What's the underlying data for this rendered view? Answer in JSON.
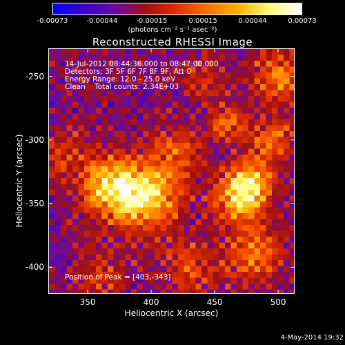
{
  "colorbar": {
    "ticks": [
      "-0.00073",
      "-0.00044",
      "-0.00015",
      "0.00015",
      "0.00044",
      "0.00073"
    ],
    "tick_values": [
      -0.00073,
      -0.00044,
      -0.00015,
      0.00015,
      0.00044,
      0.00073
    ],
    "unit_label": "(photons cm⁻² s⁻¹ asec⁻²)",
    "colors": [
      "#0000ff",
      "#3a00c8",
      "#6a0aa0",
      "#a01010",
      "#e03000",
      "#ff7000",
      "#ffb400",
      "#ffff80",
      "#ffffff"
    ]
  },
  "title": "Reconstructed RHESSI Image",
  "info": {
    "line1": "14-Jul-2012 08:44:36.000 to 08:47:00.000",
    "line2": "Detectors: 3F 5F 6F 7F 8F 9F, Att 0",
    "line3": "Energy Range: 12.0 - 25.0 keV",
    "line4": "Clean    Total counts: 2.34E+03",
    "peak": "Position of Peak = [403,-343]"
  },
  "axes": {
    "xlabel": "Heliocentric X (arcsec)",
    "ylabel": "Heliocentric Y (arcsec)",
    "xticks": [
      "350",
      "400",
      "450",
      "500"
    ],
    "xtick_values": [
      350,
      400,
      450,
      500
    ],
    "yticks": [
      "-250",
      "-300",
      "-350",
      "-400"
    ],
    "ytick_values": [
      -250,
      -300,
      -350,
      -400
    ],
    "xlim": [
      319,
      513
    ],
    "ylim": [
      -421,
      -228
    ]
  },
  "footer": "4-May-2014 19:32",
  "image_sources": [
    {
      "x": 395,
      "y": -345,
      "amp": 1.0,
      "w": 18
    },
    {
      "x": 365,
      "y": -335,
      "amp": 0.85,
      "w": 16
    },
    {
      "x": 470,
      "y": -345,
      "amp": 0.85,
      "w": 14
    },
    {
      "x": 478,
      "y": -330,
      "amp": 0.6,
      "w": 12
    },
    {
      "x": 420,
      "y": -310,
      "amp": 0.45,
      "w": 14
    },
    {
      "x": 460,
      "y": -285,
      "amp": 0.55,
      "w": 10
    },
    {
      "x": 500,
      "y": -250,
      "amp": 0.6,
      "w": 14
    },
    {
      "x": 495,
      "y": -300,
      "amp": 0.55,
      "w": 12
    },
    {
      "x": 480,
      "y": -390,
      "amp": 0.55,
      "w": 16
    },
    {
      "x": 430,
      "y": -400,
      "amp": 0.45,
      "w": 14
    },
    {
      "x": 330,
      "y": -310,
      "amp": 0.35,
      "w": 12
    },
    {
      "x": 440,
      "y": -250,
      "amp": 0.3,
      "w": 12
    },
    {
      "x": 360,
      "y": -405,
      "amp": 0.3,
      "w": 14
    }
  ]
}
